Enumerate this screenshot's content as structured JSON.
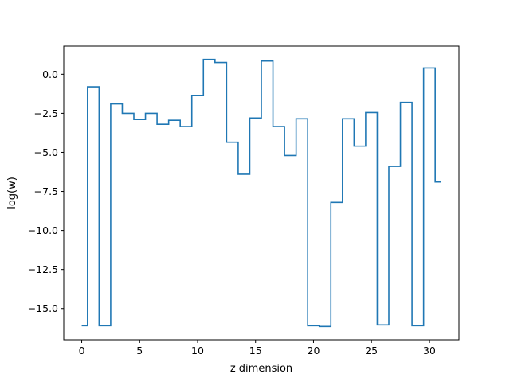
{
  "chart_data": {
    "type": "line",
    "step": "mid",
    "xlabel": "z dimension",
    "ylabel": "log(w)",
    "title": "",
    "xlim": [
      -1.55,
      32.55
    ],
    "ylim": [
      -17.0,
      1.8
    ],
    "grid": false,
    "legend": "none",
    "x_ticks": [
      0,
      5,
      10,
      15,
      20,
      25,
      30
    ],
    "y_ticks": [
      0.0,
      -2.5,
      -5.0,
      -7.5,
      -10.0,
      -12.5,
      -15.0
    ],
    "x_tick_labels": [
      "0",
      "5",
      "10",
      "15",
      "20",
      "25",
      "30"
    ],
    "y_tick_labels": [
      "0.0",
      "−2.5",
      "−5.0",
      "−7.5",
      "−10.0",
      "−12.5",
      "−15.0"
    ],
    "series": [
      {
        "color": "#1f77b4",
        "x": [
          0,
          1,
          2,
          3,
          4,
          5,
          6,
          7,
          8,
          9,
          10,
          11,
          12,
          13,
          14,
          15,
          16,
          17,
          18,
          19,
          20,
          21,
          22,
          23,
          24,
          25,
          26,
          27,
          28,
          29,
          30,
          31
        ],
        "values": [
          -16.1,
          -0.8,
          -16.1,
          -1.9,
          -2.5,
          -2.9,
          -2.5,
          -3.2,
          -2.95,
          -3.35,
          -1.35,
          0.95,
          0.75,
          -4.35,
          -6.4,
          -2.8,
          0.85,
          -3.35,
          -5.2,
          -2.85,
          -16.1,
          -16.15,
          -8.2,
          -2.85,
          -4.6,
          -2.45,
          -16.05,
          -5.9,
          -1.8,
          -16.1,
          0.4,
          -6.9
        ]
      }
    ]
  }
}
